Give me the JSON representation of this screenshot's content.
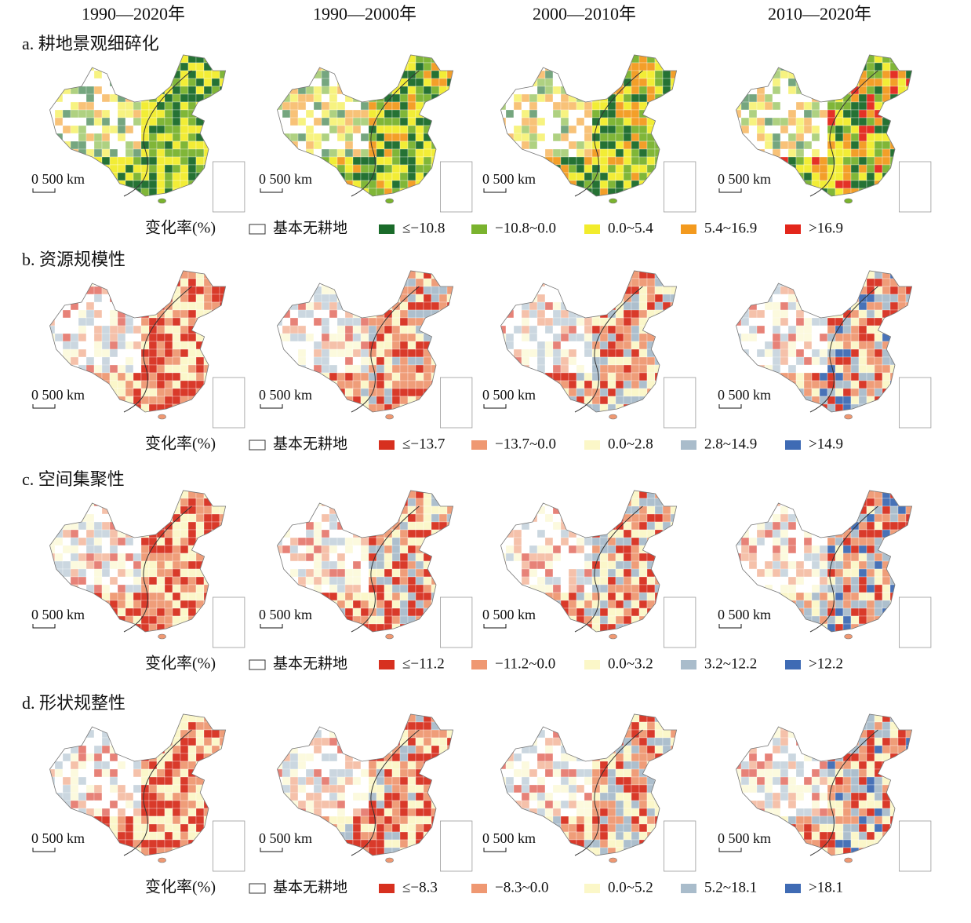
{
  "columns": [
    "1990—2020年",
    "1990—2000年",
    "2000—2010年",
    "2010—2020年"
  ],
  "panels": [
    {
      "title": "a. 耕地景观细碎化",
      "scale_bar": "0 500 km",
      "legend": {
        "title": "变化率(%)",
        "items": [
          {
            "label": "基本无耕地",
            "color": "#ffffff"
          },
          {
            "label": "≤−10.8",
            "color": "#1a6b2a"
          },
          {
            "label": "−10.8~0.0",
            "color": "#7ab32e"
          },
          {
            "label": "0.0~5.4",
            "color": "#f2ec2c"
          },
          {
            "label": "5.4~16.9",
            "color": "#f39a1e"
          },
          {
            "label": ">16.9",
            "color": "#e3261b"
          }
        ]
      }
    },
    {
      "title": "b. 资源规模性",
      "scale_bar": "0 500 km",
      "legend": {
        "title": "变化率(%)",
        "items": [
          {
            "label": "基本无耕地",
            "color": "#ffffff"
          },
          {
            "label": "≤−13.7",
            "color": "#d7301f"
          },
          {
            "label": "−13.7~0.0",
            "color": "#ef9872"
          },
          {
            "label": "0.0~2.8",
            "color": "#fbf7c8"
          },
          {
            "label": "2.8~14.9",
            "color": "#a9bccb"
          },
          {
            "label": ">14.9",
            "color": "#3f6bb4"
          }
        ]
      }
    },
    {
      "title": "c. 空间集聚性",
      "scale_bar": "0 500 km",
      "legend": {
        "title": "变化率(%)",
        "items": [
          {
            "label": "基本无耕地",
            "color": "#ffffff"
          },
          {
            "label": "≤−11.2",
            "color": "#d7301f"
          },
          {
            "label": "−11.2~0.0",
            "color": "#ef9872"
          },
          {
            "label": "0.0~3.2",
            "color": "#fbf7c8"
          },
          {
            "label": "3.2~12.2",
            "color": "#a9bccb"
          },
          {
            "label": ">12.2",
            "color": "#3f6bb4"
          }
        ]
      }
    },
    {
      "title": "d. 形状规整性",
      "scale_bar": "0 500 km",
      "legend": {
        "title": "变化率(%)",
        "items": [
          {
            "label": "基本无耕地",
            "color": "#ffffff"
          },
          {
            "label": "≤−8.3",
            "color": "#d7301f"
          },
          {
            "label": "−8.3~0.0",
            "color": "#ef9872"
          },
          {
            "label": "0.0~5.2",
            "color": "#fbf7c8"
          },
          {
            "label": "5.2~18.1",
            "color": "#a9bccb"
          },
          {
            "label": ">18.1",
            "color": "#3f6bb4"
          }
        ]
      }
    }
  ]
}
